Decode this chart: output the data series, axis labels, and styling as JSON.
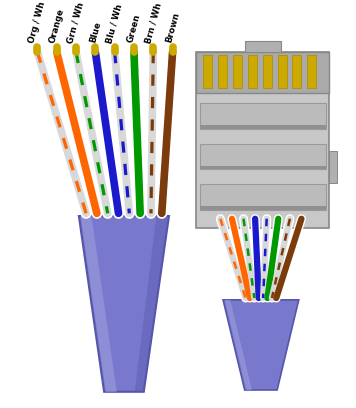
{
  "background_color": "#ffffff",
  "wires": [
    {
      "label": "Org / Wh",
      "main": "#e8e8e8",
      "stripe": "#ff6600"
    },
    {
      "label": "Orange",
      "main": "#ff6600",
      "stripe": null
    },
    {
      "label": "Grn / Wh",
      "main": "#e8e8e8",
      "stripe": "#009900"
    },
    {
      "label": "Blue",
      "main": "#1a1acc",
      "stripe": null
    },
    {
      "label": "Blu / Wh",
      "main": "#e8e8e8",
      "stripe": "#1a1acc"
    },
    {
      "label": "Green",
      "main": "#009900",
      "stripe": null
    },
    {
      "label": "Brn / Wh",
      "main": "#e8e8e8",
      "stripe": "#7B3B0B"
    },
    {
      "label": "Brown",
      "main": "#7B3B0B",
      "stripe": null
    }
  ],
  "jacket_color": "#7878cc",
  "jacket_highlight": "#9898dd",
  "jacket_shadow": "#5555aa",
  "gold_color": "#ccaa00",
  "rj45_body": "#c8c8c8",
  "rj45_dark": "#aaaaaa",
  "rj45_darker": "#909090",
  "wire_lw": 5.5,
  "fig_w": 3.56,
  "fig_h": 4.08,
  "dpi": 100
}
